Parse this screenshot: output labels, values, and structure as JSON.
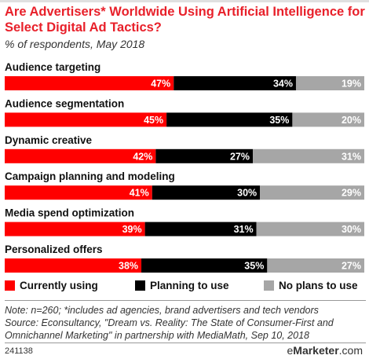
{
  "header": {
    "title": "Are Advertisers* Worldwide Using Artificial Intelligence for Select Digital Ad Tactics?",
    "subtitle": "% of respondents, May 2018"
  },
  "chart_data": {
    "type": "bar",
    "orientation": "horizontal",
    "stacked": true,
    "categories": [
      "Audience targeting",
      "Audience segmentation",
      "Dynamic creative",
      "Campaign planning and modeling",
      "Media spend optimization",
      "Personalized offers"
    ],
    "series": [
      {
        "name": "Currently using",
        "values": [
          47,
          45,
          42,
          41,
          39,
          38
        ],
        "color": "#ff0000"
      },
      {
        "name": "Planning to use",
        "values": [
          34,
          35,
          27,
          30,
          31,
          35
        ],
        "color": "#000000"
      },
      {
        "name": "No plans to use",
        "values": [
          19,
          20,
          31,
          29,
          30,
          27
        ],
        "color": "#a6a6a6"
      }
    ],
    "value_suffix": "%",
    "xlim": [
      0,
      100
    ],
    "legend_position": "bottom"
  },
  "footer": {
    "note_line1": "Note: n=260; *includes ad agencies, brand advertisers and tech vendors",
    "note_line2": "Source: Econsultancy, \"Dream vs. Reality: The State of Consumer-First and",
    "note_line3": "Omnichannel Marketing\" in partnership with MediaMath, Sep 10, 2018",
    "chart_id": "241138",
    "brand_prefix": "e",
    "brand_name": "Marketer",
    "brand_suffix": ".com"
  }
}
